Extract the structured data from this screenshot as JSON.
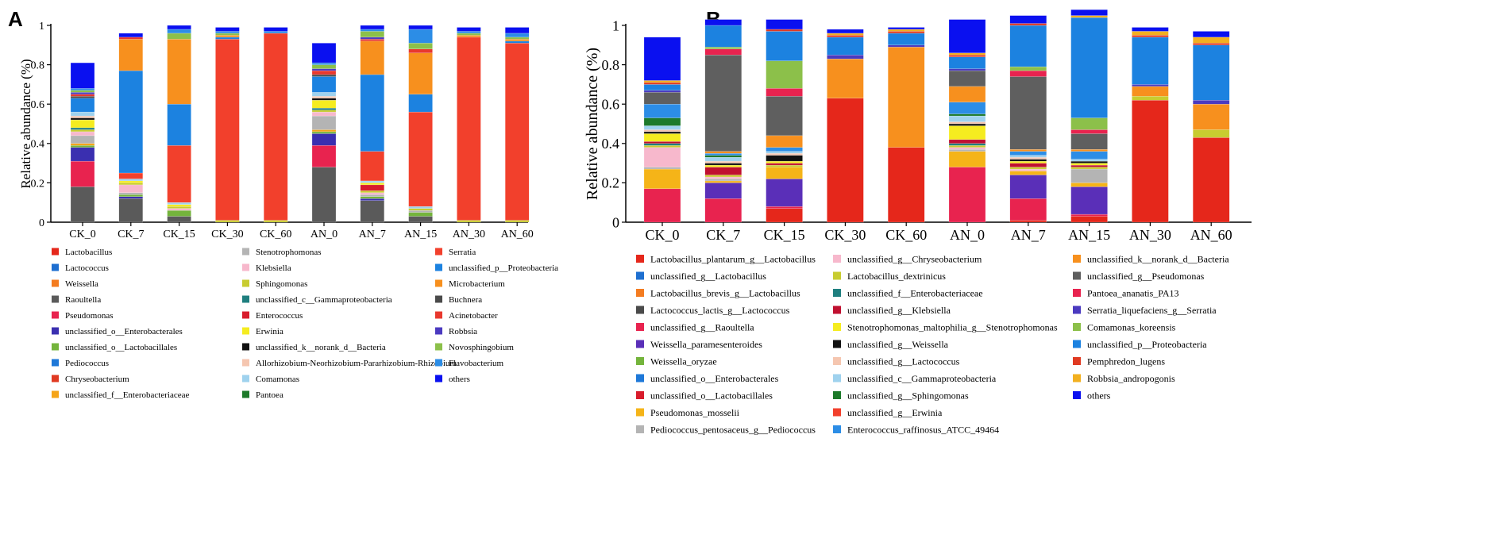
{
  "panel_a_label": "A",
  "panel_b_label": "B",
  "chart_data": [
    {
      "type": "bar",
      "stacked": true,
      "panel": "A",
      "ylabel": "Relative abundance (%)",
      "xlabel": "",
      "ylim": [
        0,
        1
      ],
      "yticks": [
        "0",
        "0.2",
        "0.4",
        "0.6",
        "0.8",
        "1"
      ],
      "categories": [
        "CK_0",
        "CK_7",
        "CK_15",
        "CK_30",
        "CK_60",
        "AN_0",
        "AN_7",
        "AN_15",
        "AN_30",
        "AN_60"
      ],
      "series": [
        {
          "name": "Lactobacillus",
          "color": "#e5271b",
          "values": [
            0,
            0,
            0,
            0,
            0,
            0,
            0,
            0,
            0,
            0
          ]
        },
        {
          "name": "Lactococcus",
          "color": "#1e6fd0",
          "values": [
            0,
            0,
            0,
            0,
            0,
            0,
            0,
            0,
            0,
            0
          ]
        },
        {
          "name": "Weissella",
          "color": "#f47c20",
          "values": [
            0,
            0,
            0,
            0,
            0,
            0,
            0,
            0,
            0,
            0
          ]
        },
        {
          "name": "Raoultella",
          "color": "#5a5a5a",
          "values": [
            0.18,
            0.12,
            0.03,
            0,
            0,
            0.28,
            0.11,
            0.03,
            0,
            0
          ]
        },
        {
          "name": "Pseudomonas",
          "color": "#e8234f",
          "values": [
            0.13,
            0,
            0,
            0,
            0,
            0.11,
            0,
            0,
            0,
            0
          ]
        },
        {
          "name": "unclassified_o__Enterobacterales",
          "color": "#3a2fb0",
          "values": [
            0.07,
            0.01,
            0,
            0,
            0,
            0.06,
            0.01,
            0,
            0,
            0
          ]
        },
        {
          "name": "unclassified_o__Lactobacillales",
          "color": "#74b43c",
          "values": [
            0.01,
            0.01,
            0.03,
            0,
            0,
            0.01,
            0.01,
            0.02,
            0,
            0
          ]
        },
        {
          "name": "Pediococcus",
          "color": "#1e78d8",
          "values": [
            0,
            0,
            0,
            0,
            0,
            0,
            0,
            0,
            0,
            0
          ]
        },
        {
          "name": "Chryseobacterium",
          "color": "#e03a22",
          "values": [
            0,
            0,
            0,
            0,
            0,
            0,
            0,
            0,
            0,
            0
          ]
        },
        {
          "name": "unclassified_f__Enterobacteriaceae",
          "color": "#f5a418",
          "values": [
            0.01,
            0,
            0,
            0,
            0,
            0.01,
            0,
            0,
            0,
            0
          ]
        },
        {
          "name": "Stenotrophomonas",
          "color": "#b4b4b4",
          "values": [
            0.04,
            0.01,
            0,
            0,
            0,
            0.07,
            0.01,
            0.01,
            0,
            0
          ]
        },
        {
          "name": "Klebsiella",
          "color": "#f7b8cc",
          "values": [
            0.02,
            0.04,
            0.01,
            0,
            0,
            0.02,
            0.01,
            0,
            0,
            0
          ]
        },
        {
          "name": "Sphingomonas",
          "color": "#c8cc30",
          "values": [
            0.01,
            0.01,
            0.01,
            0.01,
            0.01,
            0.01,
            0.01,
            0.01,
            0.01,
            0.01
          ]
        },
        {
          "name": "unclassified_c__Gammaproteobacteria",
          "color": "#1f7f7f",
          "values": [
            0.01,
            0,
            0,
            0,
            0,
            0.01,
            0,
            0,
            0,
            0
          ]
        },
        {
          "name": "Enterococcus",
          "color": "#d81c2c",
          "values": [
            0,
            0,
            0,
            0,
            0,
            0,
            0.03,
            0,
            0,
            0
          ]
        },
        {
          "name": "Erwinia",
          "color": "#f5ec20",
          "values": [
            0.04,
            0.01,
            0.01,
            0,
            0,
            0.04,
            0.01,
            0,
            0,
            0
          ]
        },
        {
          "name": "unclassified_k__norank_d__Bacteria",
          "color": "#111111",
          "values": [
            0.01,
            0,
            0,
            0,
            0,
            0.01,
            0,
            0,
            0,
            0
          ]
        },
        {
          "name": "Allorhizobium-Neorhizobium-Pararhizobium-Rhizobium",
          "color": "#f5c6b0",
          "values": [
            0.01,
            0,
            0,
            0,
            0,
            0.01,
            0,
            0,
            0,
            0
          ]
        },
        {
          "name": "Comamonas",
          "color": "#9fd2ee",
          "values": [
            0.02,
            0.01,
            0.01,
            0,
            0,
            0.02,
            0.01,
            0.01,
            0,
            0
          ]
        },
        {
          "name": "Pantoea",
          "color": "#1d7a2a",
          "values": [
            0,
            0,
            0,
            0,
            0,
            0,
            0,
            0,
            0,
            0
          ]
        },
        {
          "name": "Serratia",
          "color": "#f2402c",
          "values": [
            0,
            0.03,
            0.29,
            0.92,
            0.95,
            0,
            0.15,
            0.48,
            0.93,
            0.9
          ]
        },
        {
          "name": "unclassified_p__Proteobacteria",
          "color": "#1c82e0",
          "values": [
            0.07,
            0.52,
            0.21,
            0.01,
            0,
            0.08,
            0.39,
            0.09,
            0,
            0.01
          ]
        },
        {
          "name": "Microbacterium",
          "color": "#f7901e",
          "values": [
            0,
            0.16,
            0.33,
            0.01,
            0,
            0,
            0.17,
            0.21,
            0.01,
            0.01
          ]
        },
        {
          "name": "Buchnera",
          "color": "#4a4a4a",
          "values": [
            0.01,
            0,
            0,
            0,
            0,
            0.01,
            0,
            0,
            0,
            0
          ]
        },
        {
          "name": "Acinetobacter",
          "color": "#e8382e",
          "values": [
            0.01,
            0.01,
            0,
            0,
            0,
            0.02,
            0.01,
            0.02,
            0,
            0
          ]
        },
        {
          "name": "Robbsia",
          "color": "#4b3ac0",
          "values": [
            0.01,
            0,
            0,
            0,
            0,
            0.01,
            0.01,
            0,
            0,
            0
          ]
        },
        {
          "name": "Novosphingobium",
          "color": "#8cc04a",
          "values": [
            0.01,
            0,
            0.03,
            0.01,
            0,
            0.02,
            0.03,
            0.03,
            0.01,
            0.01
          ]
        },
        {
          "name": "Flavobacterium",
          "color": "#2c8de6",
          "values": [
            0.01,
            0,
            0.02,
            0.01,
            0.01,
            0.01,
            0.01,
            0.07,
            0.01,
            0.02
          ]
        },
        {
          "name": "others",
          "color": "#0a10f0",
          "values": [
            0.13,
            0.02,
            0.02,
            0.02,
            0.02,
            0.1,
            0.02,
            0.02,
            0.02,
            0.03
          ]
        }
      ]
    },
    {
      "type": "bar",
      "stacked": true,
      "panel": "B",
      "ylabel": "Relative abundance (%)",
      "xlabel": "",
      "ylim": [
        0,
        1
      ],
      "yticks": [
        "0",
        "0.2",
        "0.4",
        "0.6",
        "0.8",
        "1"
      ],
      "categories": [
        "CK_0",
        "CK_7",
        "CK_15",
        "CK_30",
        "CK_60",
        "AN_0",
        "AN_7",
        "AN_15",
        "AN_30",
        "AN_60"
      ],
      "series": [
        {
          "name": "Lactobacillus_plantarum_g__Lactobacillus",
          "color": "#e5271b",
          "values": [
            0,
            0,
            0.07,
            0.63,
            0.38,
            0,
            0.01,
            0.03,
            0.62,
            0.43
          ]
        },
        {
          "name": "unclassified_g__Lactobacillus",
          "color": "#1e6fd0",
          "values": [
            0,
            0,
            0,
            0,
            0,
            0,
            0,
            0,
            0,
            0
          ]
        },
        {
          "name": "Lactobacillus_brevis_g__Lactobacillus",
          "color": "#f47c20",
          "values": [
            0,
            0,
            0,
            0,
            0,
            0,
            0,
            0,
            0,
            0
          ]
        },
        {
          "name": "Lactococcus_lactis_g__Lactococcus",
          "color": "#4a4a4a",
          "values": [
            0,
            0,
            0,
            0,
            0,
            0,
            0,
            0,
            0,
            0
          ]
        },
        {
          "name": "unclassified_g__Raoultella",
          "color": "#e8234f",
          "values": [
            0.17,
            0.12,
            0.01,
            0,
            0,
            0.28,
            0.11,
            0.01,
            0,
            0
          ]
        },
        {
          "name": "Weissella_paramesenteroides",
          "color": "#5a2fb8",
          "values": [
            0,
            0.08,
            0.14,
            0,
            0,
            0,
            0.12,
            0.14,
            0,
            0
          ]
        },
        {
          "name": "Weissella_oryzae",
          "color": "#74b43c",
          "values": [
            0,
            0,
            0,
            0,
            0,
            0,
            0,
            0,
            0,
            0
          ]
        },
        {
          "name": "unclassified_o__Enterobacterales",
          "color": "#1e78d8",
          "values": [
            0,
            0,
            0,
            0,
            0,
            0,
            0,
            0,
            0,
            0
          ]
        },
        {
          "name": "unclassified_o__Lactobacillales",
          "color": "#d81c2c",
          "values": [
            0,
            0,
            0,
            0,
            0,
            0,
            0,
            0,
            0,
            0
          ]
        },
        {
          "name": "Pseudomonas_mosselii",
          "color": "#f5b418",
          "values": [
            0.1,
            0.01,
            0.06,
            0,
            0,
            0.08,
            0.02,
            0.02,
            0,
            0
          ]
        },
        {
          "name": "Pediococcus_pentosaceus_g__Pediococcus",
          "color": "#b4b4b4",
          "values": [
            0.01,
            0.01,
            0,
            0,
            0,
            0.01,
            0,
            0.07,
            0,
            0
          ]
        },
        {
          "name": "unclassified_g__Chryseobacterium",
          "color": "#f7b8cc",
          "values": [
            0.1,
            0.01,
            0,
            0,
            0,
            0.01,
            0.01,
            0,
            0,
            0
          ]
        },
        {
          "name": "Lactobacillus_dextrinicus",
          "color": "#c8cc30",
          "values": [
            0.01,
            0.01,
            0.01,
            0,
            0,
            0.01,
            0.01,
            0.01,
            0.02,
            0.04
          ]
        },
        {
          "name": "unclassified_f__Enterobacteriaceae",
          "color": "#1f7f7f",
          "values": [
            0.01,
            0,
            0,
            0,
            0,
            0.01,
            0,
            0,
            0,
            0
          ]
        },
        {
          "name": "unclassified_g__Klebsiella",
          "color": "#c01030",
          "values": [
            0.01,
            0.04,
            0.01,
            0,
            0,
            0.02,
            0.02,
            0.01,
            0,
            0
          ]
        },
        {
          "name": "Stenotrophomonas_maltophilia_g__Stenotrophomonas",
          "color": "#f5ec20",
          "values": [
            0.04,
            0.01,
            0.01,
            0,
            0,
            0.07,
            0.01,
            0.01,
            0,
            0
          ]
        },
        {
          "name": "unclassified_g__Weissella",
          "color": "#111111",
          "values": [
            0.01,
            0.01,
            0.03,
            0,
            0,
            0.01,
            0.01,
            0.01,
            0,
            0
          ]
        },
        {
          "name": "unclassified_g__Lactococcus",
          "color": "#f5c6b0",
          "values": [
            0.01,
            0.01,
            0.01,
            0,
            0,
            0.01,
            0.01,
            0,
            0,
            0
          ]
        },
        {
          "name": "unclassified_c__Gammaproteobacteria",
          "color": "#9fd2ee",
          "values": [
            0.02,
            0.02,
            0.01,
            0,
            0,
            0.03,
            0.01,
            0.01,
            0,
            0
          ]
        },
        {
          "name": "unclassified_g__Sphingomonas",
          "color": "#1d7a2a",
          "values": [
            0.04,
            0.01,
            0,
            0,
            0,
            0.01,
            0,
            0,
            0,
            0
          ]
        },
        {
          "name": "unclassified_g__Erwinia",
          "color": "#f2402c",
          "values": [
            0,
            0,
            0,
            0,
            0,
            0,
            0,
            0,
            0,
            0
          ]
        },
        {
          "name": "Enterococcus_raffinosus_ATCC_49464",
          "color": "#2c8de6",
          "values": [
            0.07,
            0.01,
            0.02,
            0,
            0,
            0.06,
            0.02,
            0.04,
            0,
            0
          ]
        },
        {
          "name": "unclassified_k__norank_d__Bacteria",
          "color": "#f7901e",
          "values": [
            0,
            0.01,
            0.06,
            0.2,
            0.51,
            0.08,
            0.01,
            0.01,
            0.05,
            0.13
          ]
        },
        {
          "name": "unclassified_g__Pseudomonas",
          "color": "#5f5f5f",
          "values": [
            0.06,
            0.49,
            0.2,
            0,
            0,
            0.08,
            0.37,
            0.08,
            0,
            0
          ]
        },
        {
          "name": "Pantoea_ananatis_PA13",
          "color": "#e8234f",
          "values": [
            0,
            0.03,
            0.04,
            0,
            0,
            0,
            0.03,
            0.02,
            0,
            0
          ]
        },
        {
          "name": "Serratia_liquefaciens_g__Serratia",
          "color": "#4b3ac0",
          "values": [
            0.01,
            0,
            0,
            0.02,
            0.01,
            0.01,
            0,
            0,
            0.01,
            0.02
          ]
        },
        {
          "name": "Comamonas_koreensis",
          "color": "#8cc04a",
          "values": [
            0,
            0.01,
            0.14,
            0,
            0,
            0,
            0.02,
            0.06,
            0,
            0
          ]
        },
        {
          "name": "unclassified_p__Proteobacteria",
          "color": "#1c82e0",
          "values": [
            0.03,
            0.11,
            0.15,
            0.09,
            0.06,
            0.06,
            0.21,
            0.51,
            0.24,
            0.28
          ]
        },
        {
          "name": "Pemphredon_lugens",
          "color": "#e03a22",
          "values": [
            0.01,
            0,
            0.01,
            0.01,
            0.01,
            0.01,
            0.01,
            0,
            0.01,
            0.01
          ]
        },
        {
          "name": "Robbsia_andropogonis",
          "color": "#f2b020",
          "values": [
            0.01,
            0,
            0,
            0.01,
            0.01,
            0.01,
            0,
            0.01,
            0.02,
            0.03
          ]
        },
        {
          "name": "others",
          "color": "#0a10f0",
          "values": [
            0.22,
            0.03,
            0.05,
            0.02,
            0.01,
            0.17,
            0.04,
            0.03,
            0.02,
            0.03
          ]
        }
      ]
    }
  ]
}
